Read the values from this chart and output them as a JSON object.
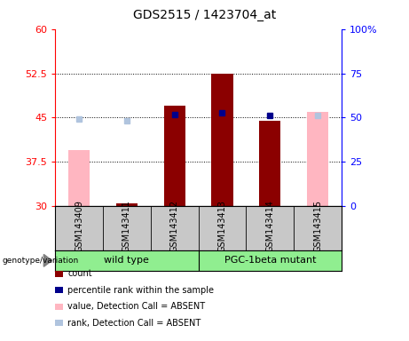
{
  "title": "GDS2515 / 1423704_at",
  "samples": [
    "GSM143409",
    "GSM143411",
    "GSM143412",
    "GSM143413",
    "GSM143414",
    "GSM143415"
  ],
  "bar_values": [
    39.5,
    30.5,
    47.0,
    52.5,
    44.5,
    46.0
  ],
  "bar_absent": [
    true,
    false,
    false,
    false,
    false,
    true
  ],
  "bar_color_present": "#8B0000",
  "bar_color_absent": "#FFB6C1",
  "blue_sq_values": [
    null,
    null,
    51.5,
    52.5,
    51.0,
    null
  ],
  "blue_sq_absent": [
    false,
    false,
    false,
    false,
    false,
    false
  ],
  "lightblue_sq_values": [
    49.0,
    48.0,
    null,
    null,
    null,
    51.0
  ],
  "ylim_left": [
    30,
    60
  ],
  "ylim_right": [
    0,
    100
  ],
  "yticks_left": [
    30,
    37.5,
    45,
    52.5,
    60
  ],
  "ytick_labels_left": [
    "30",
    "37.5",
    "45",
    "52.5",
    "60"
  ],
  "yticks_right": [
    0,
    25,
    50,
    75,
    100
  ],
  "ytick_labels_right": [
    "0",
    "25",
    "50",
    "75",
    "100%"
  ],
  "grid_values": [
    37.5,
    45,
    52.5
  ],
  "bar_color_present_hex": "#8B0000",
  "bar_color_absent_hex": "#FFB6C1",
  "blue_present_hex": "#00008B",
  "blue_absent_hex": "#B0C4DE",
  "group1_label": "wild type",
  "group2_label": "PGC-1beta mutant",
  "group_color": "#90EE90",
  "label_bg_color": "#C8C8C8",
  "legend_items": [
    {
      "color": "#8B0000",
      "label": "count"
    },
    {
      "color": "#00008B",
      "label": "percentile rank within the sample"
    },
    {
      "color": "#FFB6C1",
      "label": "value, Detection Call = ABSENT"
    },
    {
      "color": "#B0C4DE",
      "label": "rank, Detection Call = ABSENT"
    }
  ]
}
